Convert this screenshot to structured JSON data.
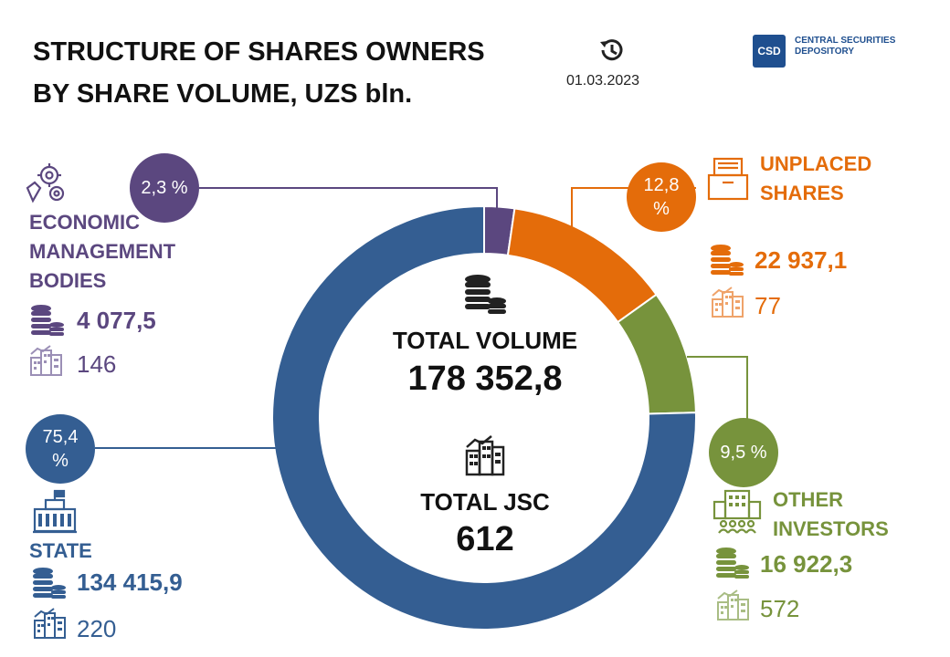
{
  "header": {
    "title_line1": "STRUCTURE OF SHARES OWNERS",
    "title_line2": "BY SHARE VOLUME, UZS bln.",
    "date": "01.03.2023",
    "logo_line1": "CENTRAL SECURITIES",
    "logo_line2": "DEPOSITORY",
    "logo_mark": "CSD"
  },
  "center": {
    "volume_label": "TOTAL VOLUME",
    "volume_value": "178 352,8",
    "jsc_label": "TOTAL JSC",
    "jsc_value": "612"
  },
  "segments": {
    "economic": {
      "label1": "ECONOMIC",
      "label2": "MANAGEMENT",
      "label3": "BODIES",
      "pct_text": "2,3 %",
      "volume_text": "4 077,5",
      "count_text": "146"
    },
    "unplaced": {
      "label1": "UNPLACED",
      "label2": "SHARES",
      "pct_text": "12,8 %",
      "volume_text": "22 937,1",
      "count_text": "77"
    },
    "other": {
      "label1": "OTHER",
      "label2": "INVESTORS",
      "pct_text": "9,5 %",
      "volume_text": "16 922,3",
      "count_text": "572"
    },
    "state": {
      "label1": "STATE",
      "pct_text": "75,4 %",
      "volume_text": "134 415,9",
      "count_text": "220"
    }
  },
  "colors": {
    "economic": "#5b477f",
    "unplaced": "#e46c0a",
    "other": "#77933c",
    "state": "#345e92"
  },
  "chart_data": {
    "type": "pie",
    "variant": "donut",
    "title": "STRUCTURE OF SHARES OWNERS BY SHARE VOLUME, UZS bln.",
    "categories": [
      "ECONOMIC MANAGEMENT BODIES",
      "UNPLACED SHARES",
      "OTHER INVESTORS",
      "STATE"
    ],
    "values": [
      2.3,
      12.8,
      9.5,
      75.4
    ],
    "volumes_uzs_bln": [
      4077.5,
      22937.1,
      16922.3,
      134415.9
    ],
    "jsc_counts": [
      146,
      77,
      572,
      220
    ],
    "total_volume": 178352.8,
    "total_jsc": 612,
    "unit": "%"
  }
}
